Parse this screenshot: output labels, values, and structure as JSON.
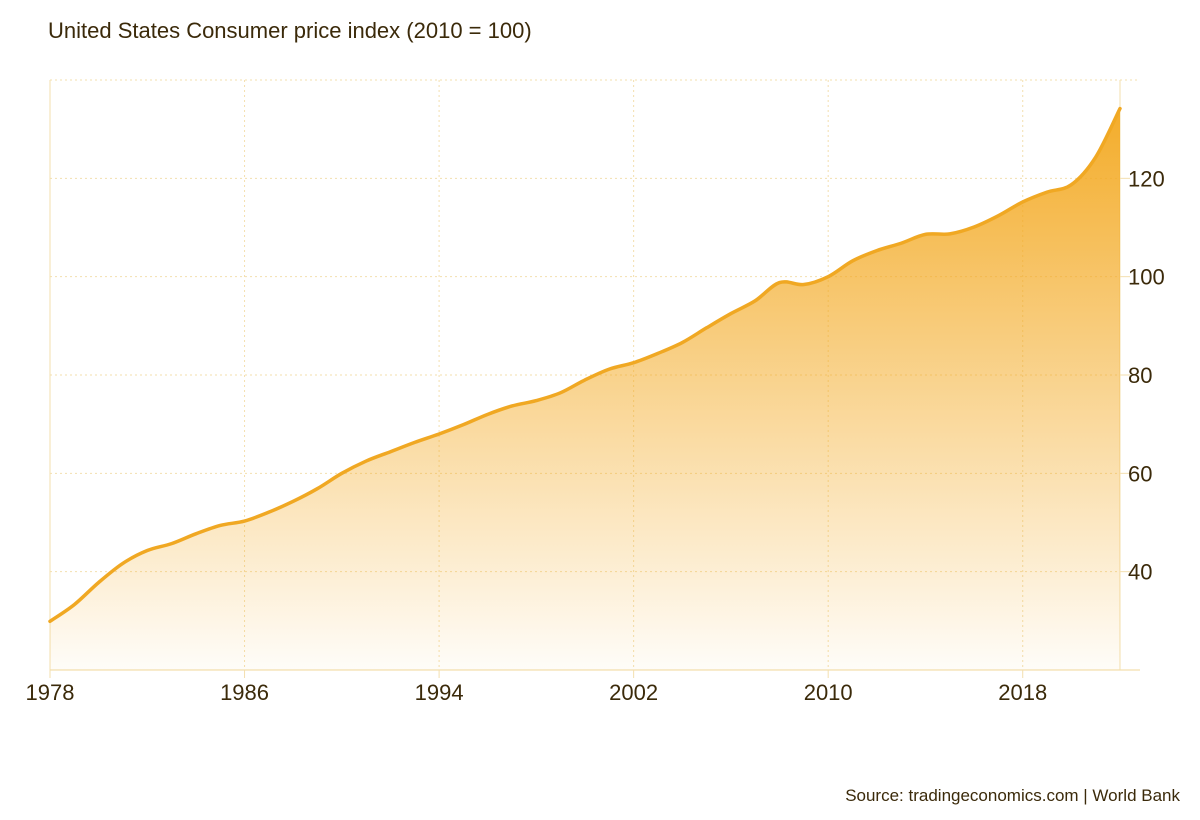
{
  "title": "United States Consumer price index (2010 = 100)",
  "source": "Source: tradingeconomics.com | World Bank",
  "colors": {
    "line": "#f0a823",
    "fill_top": "#f3a81f",
    "grid": "#f3dfae",
    "text": "#3b2a0a"
  },
  "chart_data": {
    "type": "area",
    "title": "United States Consumer price index (2010 = 100)",
    "xlabel": "",
    "ylabel": "",
    "x": [
      1978,
      1979,
      1980,
      1981,
      1982,
      1983,
      1984,
      1985,
      1986,
      1987,
      1988,
      1989,
      1990,
      1991,
      1992,
      1993,
      1994,
      1995,
      1996,
      1997,
      1998,
      1999,
      2000,
      2001,
      2002,
      2003,
      2004,
      2005,
      2006,
      2007,
      2008,
      2009,
      2010,
      2011,
      2012,
      2013,
      2014,
      2015,
      2016,
      2017,
      2018,
      2019,
      2020,
      2021,
      2022
    ],
    "series": [
      {
        "values": [
          29.9,
          33.3,
          37.8,
          41.7,
          44.3,
          45.7,
          47.7,
          49.4,
          50.3,
          52.1,
          54.3,
          56.9,
          60.0,
          62.5,
          64.4,
          66.3,
          68.0,
          69.9,
          72.0,
          73.7,
          74.8,
          76.4,
          79.0,
          81.2,
          82.5,
          84.4,
          86.6,
          89.6,
          92.5,
          95.1,
          98.8,
          98.4,
          100.0,
          103.2,
          105.3,
          106.8,
          108.6,
          108.7,
          110.1,
          112.4,
          115.2,
          117.2,
          118.7,
          124.3,
          134.2
        ]
      }
    ],
    "x_ticks": [
      1978,
      1986,
      1994,
      2002,
      2010,
      2018
    ],
    "y_ticks": [
      40,
      60,
      80,
      100,
      120
    ],
    "xlim": [
      1978,
      2022
    ],
    "ylim": [
      20,
      140
    ],
    "y_axis_side": "right",
    "grid": true,
    "legend": "none"
  }
}
